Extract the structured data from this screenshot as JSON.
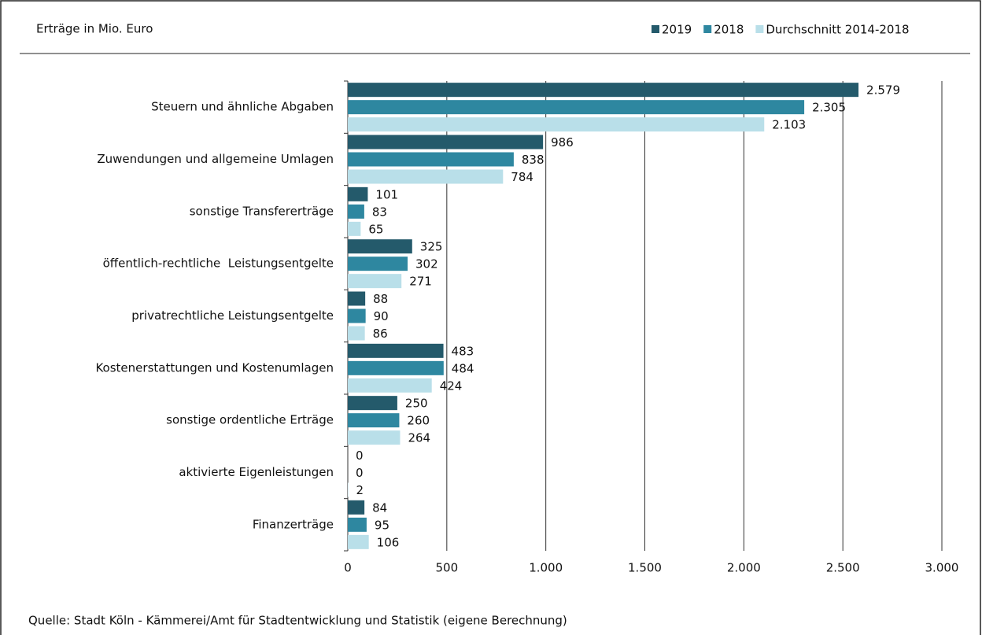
{
  "chart_data": {
    "type": "hbar",
    "title": "Erträge in Mio. Euro",
    "source": "Quelle: Stadt Köln - Kämmerei/Amt für Stadtentwicklung und Statistik (eigene Berechnung)",
    "categories": [
      "Steuern und ähnliche Abgaben",
      "Zuwendungen und allgemeine Umlagen",
      "sonstige Transfererträge",
      "öffentlich-rechtliche  Leistungsentgelte",
      "privatrechtliche Leistungsentgelte",
      "Kostenerstattungen und Kostenumlagen",
      "sonstige ordentliche Erträge",
      "aktivierte Eigenleistungen",
      "Finanzerträge"
    ],
    "series": [
      {
        "name": "2019",
        "color": "#245a6b",
        "values": [
          2579,
          986,
          101,
          325,
          88,
          483,
          250,
          0,
          84
        ],
        "value_labels": [
          "2.579",
          "986",
          "101",
          "325",
          "88",
          "483",
          "250",
          "0",
          "84"
        ]
      },
      {
        "name": "2018",
        "color": "#2e87a0",
        "values": [
          2305,
          838,
          83,
          302,
          90,
          484,
          260,
          0,
          95
        ],
        "value_labels": [
          "2.305",
          "838",
          "83",
          "302",
          "90",
          "484",
          "260",
          "0",
          "95"
        ]
      },
      {
        "name": "Durchschnitt 2014-2018",
        "color": "#b9dfe9",
        "values": [
          2103,
          784,
          65,
          271,
          86,
          424,
          264,
          2,
          106
        ],
        "value_labels": [
          "2.103",
          "784",
          "65",
          "271",
          "86",
          "424",
          "264",
          "2",
          "106"
        ]
      }
    ],
    "xlim": [
      0,
      3000
    ],
    "xticks": [
      0,
      500,
      {
        "value": 1000,
        "label": "1.000"
      },
      {
        "value": 1500,
        "label": "1.500"
      },
      {
        "value": 2000,
        "label": "2.000"
      },
      {
        "value": 2500,
        "label": "2.500"
      },
      {
        "value": 3000,
        "label": "3.000"
      }
    ],
    "grid": true,
    "legend": "top-right"
  }
}
